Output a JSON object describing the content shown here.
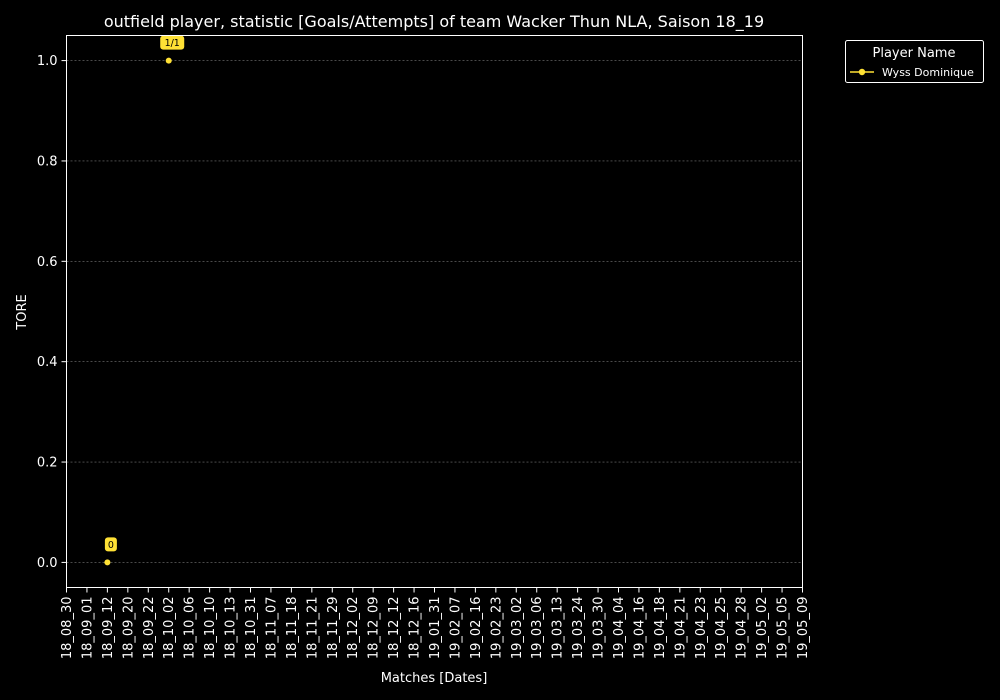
{
  "chart_data": {
    "type": "line",
    "title": "outfield player, statistic [Goals/Attempts] of team Wacker Thun NLA, Saison 18_19",
    "xlabel": "Matches [Dates]",
    "ylabel": "TORE",
    "ylim": [
      -0.05,
      1.05
    ],
    "yticks": [
      "0.0",
      "0.2",
      "0.4",
      "0.6",
      "0.8",
      "1.0"
    ],
    "categories": [
      "18_08_30",
      "18_09_01",
      "18_09_12",
      "18_09_20",
      "18_09_22",
      "18_10_02",
      "18_10_06",
      "18_10_10",
      "18_10_13",
      "18_10_31",
      "18_11_07",
      "18_11_18",
      "18_11_21",
      "18_11_29",
      "18_12_02",
      "18_12_09",
      "18_12_12",
      "18_12_16",
      "19_01_31",
      "19_02_07",
      "19_02_16",
      "19_02_23",
      "19_03_02",
      "19_03_06",
      "19_03_13",
      "19_03_24",
      "19_03_30",
      "19_04_04",
      "19_04_16",
      "19_04_18",
      "19_04_21",
      "19_04_23",
      "19_04_25",
      "19_04_28",
      "19_05_02",
      "19_05_05",
      "19_05_09"
    ],
    "grid": "horizontal dashed",
    "legend": {
      "title": "Player Name",
      "position": "outside top-right"
    },
    "series": [
      {
        "name": "Wyss Dominique",
        "color": "#ffe135",
        "points": [
          {
            "x": "18_09_12",
            "y": 0,
            "label": "0"
          },
          {
            "x": "18_10_02",
            "y": 1.0,
            "label": "1/1"
          }
        ]
      }
    ]
  }
}
